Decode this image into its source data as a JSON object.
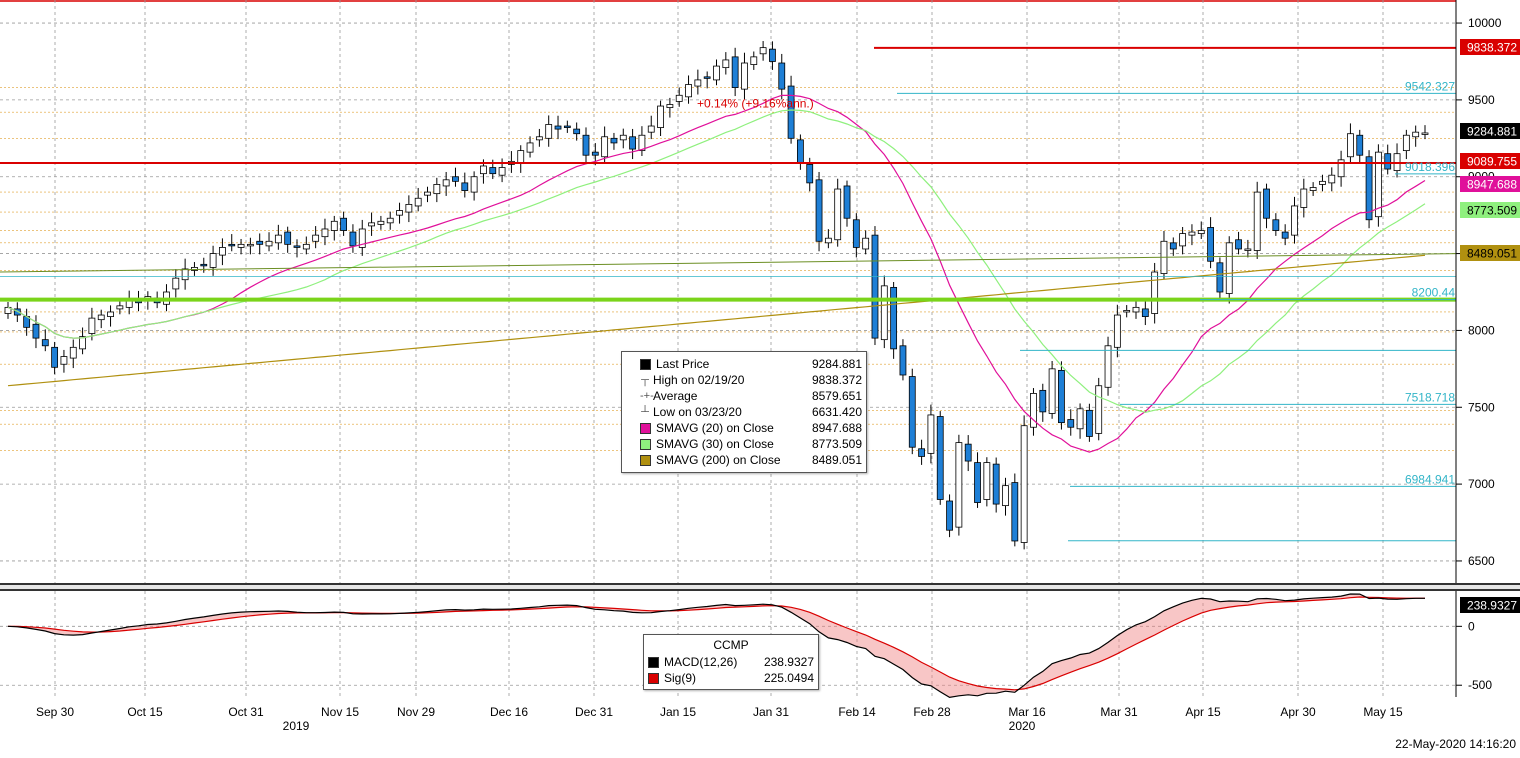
{
  "chart_data": [
    {
      "type": "candlestick",
      "title": "",
      "y_axis_ticks": [
        6500,
        7000,
        7500,
        8000,
        8500,
        9000,
        9500,
        10000
      ],
      "ylim": [
        6350,
        10150
      ],
      "x_tick_labels": [
        "Sep 30",
        "Oct 15",
        "Oct 31",
        "Nov 15",
        "Nov 29",
        "Dec 16",
        "Dec 31",
        "Jan 15",
        "Jan 31",
        "Feb 14",
        "Feb 28",
        "Mar 16",
        "Mar 31",
        "Apr 15",
        "Apr 30",
        "May 15"
      ],
      "year_labels": [
        "2019",
        "2020"
      ],
      "close_series": [
        8150,
        8100,
        8020,
        7950,
        7900,
        7760,
        7830,
        7890,
        7960,
        8080,
        8100,
        8120,
        8160,
        8200,
        8180,
        8220,
        8180,
        8250,
        8340,
        8400,
        8410,
        8420,
        8500,
        8540,
        8550,
        8560,
        8560,
        8560,
        8580,
        8620,
        8560,
        8540,
        8560,
        8620,
        8660,
        8710,
        8650,
        8550,
        8660,
        8700,
        8710,
        8730,
        8780,
        8820,
        8860,
        8900,
        8950,
        8980,
        8970,
        8910,
        9000,
        9070,
        9020,
        9060,
        9100,
        9170,
        9220,
        9260,
        9340,
        9310,
        9320,
        9280,
        9140,
        9140,
        9260,
        9220,
        9270,
        9180,
        9270,
        9330,
        9460,
        9470,
        9530,
        9600,
        9630,
        9640,
        9720,
        9760,
        9580,
        9740,
        9780,
        9840,
        9750,
        9570,
        9250,
        9090,
        8960,
        8580,
        8600,
        8920,
        8730,
        8540,
        8600,
        7950,
        8290,
        7880,
        7710,
        7240,
        7180,
        7450,
        6900,
        6700,
        7270,
        7150,
        6880,
        7140,
        6870,
        6990,
        6630,
        7380,
        7590,
        7470,
        7750,
        7400,
        7370,
        7490,
        7310,
        7640,
        7900,
        8100,
        8130,
        8150,
        8090,
        8380,
        8580,
        8530,
        8630,
        8640,
        8650,
        8450,
        8250,
        8570,
        8530,
        8530,
        8900,
        8730,
        8650,
        8600,
        8810,
        8920,
        8930,
        8970,
        9010,
        9110,
        9280,
        9140,
        8720,
        9160,
        9050,
        9150,
        9270,
        9290,
        9284.881
      ],
      "horizontal_levels": {
        "red": [
          9838.372,
          9089.755
        ],
        "cyan": [
          9542.327,
          9018.396,
          8200.44,
          7518.718,
          6984.941
        ],
        "green_thick": 8200.44
      },
      "right_axis_labels": [
        {
          "text": "9838.372",
          "bg": "#d90000",
          "fg": "#ffffff",
          "value": 9838.372
        },
        {
          "text": "9284.881",
          "bg": "#000000",
          "fg": "#ffffff",
          "value": 9284.881
        },
        {
          "text": "9089.755",
          "bg": "#d90000",
          "fg": "#ffffff",
          "value": 9089.755
        },
        {
          "text": "8947.688",
          "bg": "#e0109a",
          "fg": "#ffffff",
          "value": 8947.688
        },
        {
          "text": "8773.509",
          "bg": "#8ff07e",
          "fg": "#000000",
          "value": 8773.509
        },
        {
          "text": "8489.051",
          "bg": "#b09010",
          "fg": "#000000",
          "value": 8489.051
        }
      ],
      "level_labels": [
        "9542.327",
        "9018.396",
        "8200.44",
        "7518.718",
        "6984.941"
      ],
      "annotation": "+0.14% (+9.16%ann.)",
      "legend": [
        {
          "label": "Last Price",
          "value": "9284.881",
          "swatch": "#000000"
        },
        {
          "label": "High on 02/19/20",
          "value": "9838.372",
          "marker": "┬"
        },
        {
          "label": "Average",
          "value": "8579.651",
          "marker": "-+-"
        },
        {
          "label": "Low on 03/23/20",
          "value": "6631.420",
          "marker": "┴"
        },
        {
          "label": "SMAVG (20)  on Close",
          "value": "8947.688",
          "swatch": "#e0109a"
        },
        {
          "label": "SMAVG (30)  on Close",
          "value": "8773.509",
          "swatch": "#8ff07e"
        },
        {
          "label": "SMAVG (200)  on Close",
          "value": "8489.051",
          "swatch": "#b09010"
        }
      ],
      "colors": {
        "up": "#ffffff",
        "down": "#1e7fd6",
        "sma20": "#e0109a",
        "sma30": "#8ff07e",
        "sma200": "#b09010",
        "red_line": "#d90000",
        "cyan_line": "#33b5c8",
        "green_thick": "#7ad41a"
      }
    },
    {
      "type": "line",
      "title": "CCMP",
      "ylim": [
        -600,
        300
      ],
      "y_axis_ticks": [
        0,
        -500
      ],
      "series": [
        {
          "name": "MACD(12,26)",
          "last": "238.9327",
          "color": "#000000"
        },
        {
          "name": "Sig(9)",
          "last": "225.0494",
          "color": "#d90000"
        }
      ],
      "last_label": "238.9327"
    }
  ],
  "timestamp": "22-May-2020 14:16:20"
}
